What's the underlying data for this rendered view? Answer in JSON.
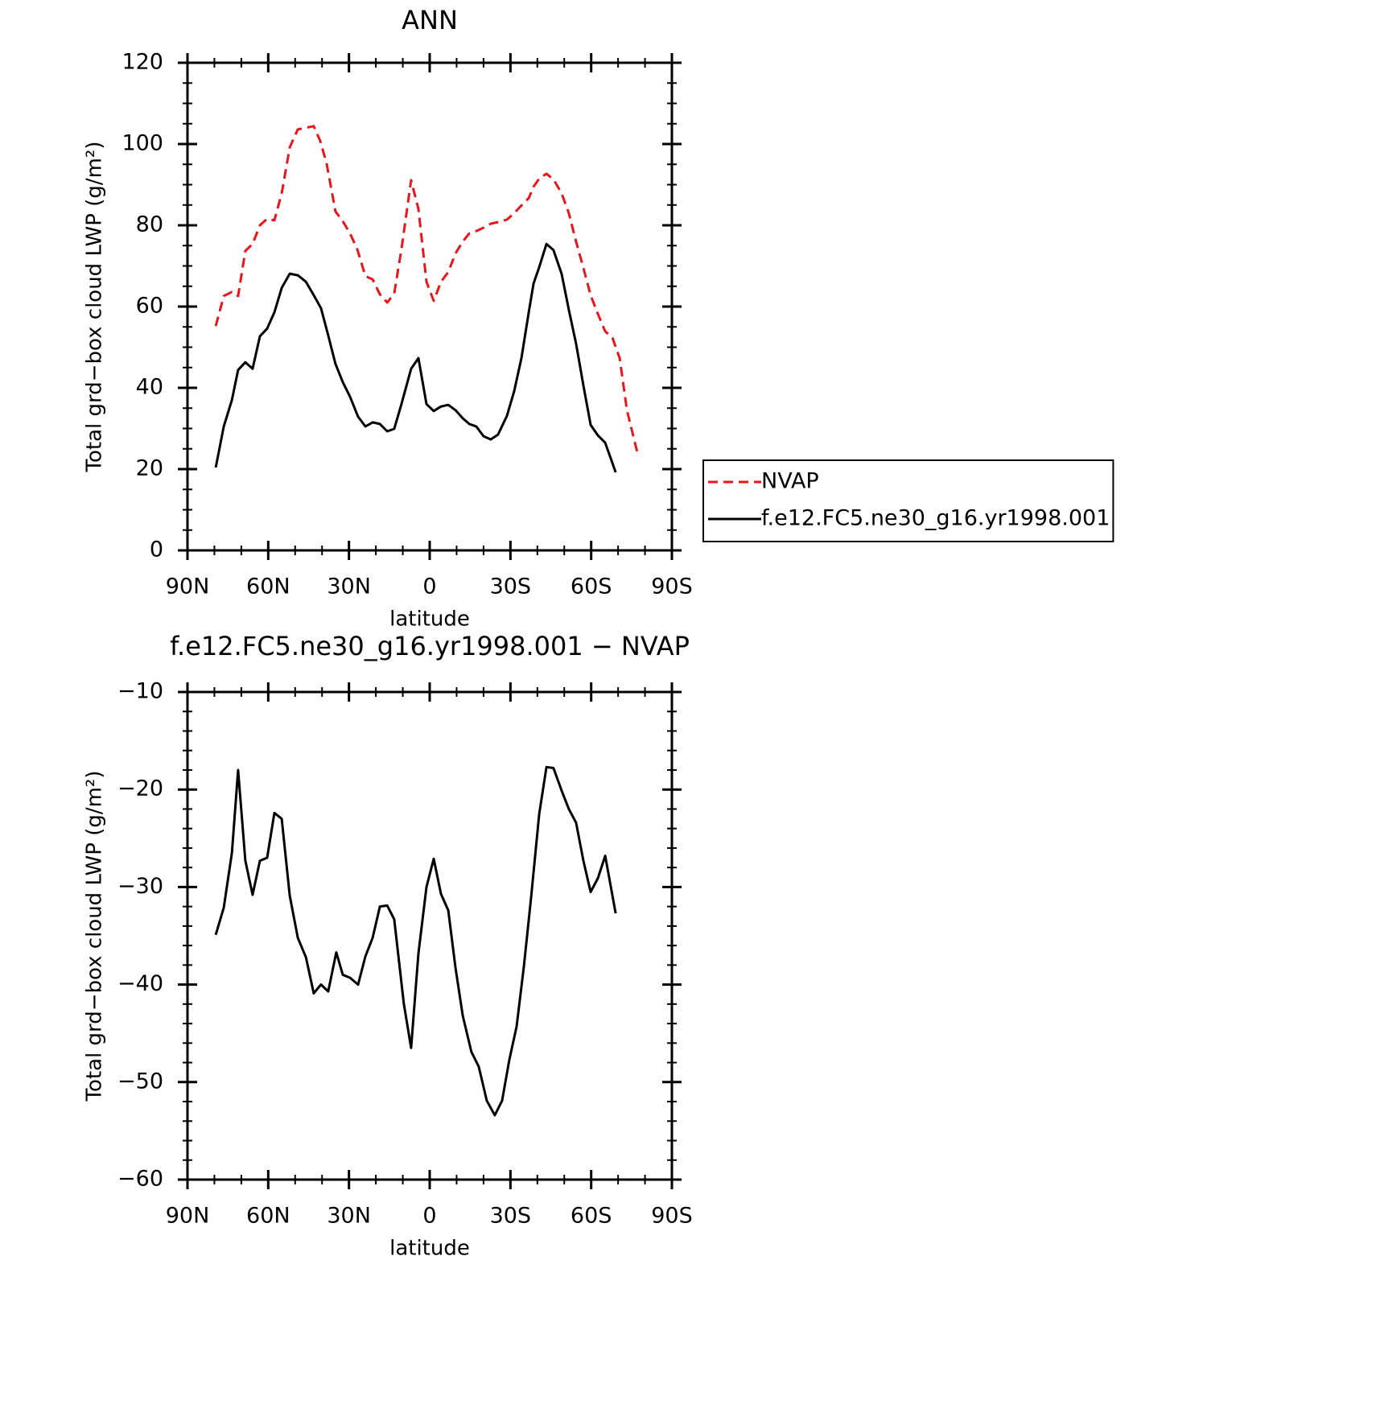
{
  "chart_data": [
    {
      "type": "line",
      "title": "ANN",
      "xlabel": "latitude",
      "ylabel": "Total grd−box cloud LWP (g/m²)",
      "xlim": [
        90,
        -90
      ],
      "xticks": [
        {
          "value": 90,
          "label": "90N"
        },
        {
          "value": 60,
          "label": "60N"
        },
        {
          "value": 30,
          "label": "30N"
        },
        0,
        {
          "value": -30,
          "label": "30S"
        },
        {
          "value": -60,
          "label": "60S"
        },
        {
          "value": -90,
          "label": "90S"
        }
      ],
      "xminorticks": [
        80,
        70,
        50,
        40,
        20,
        10,
        -10,
        -20,
        -40,
        -50,
        -70,
        -80
      ],
      "ylim": [
        0,
        120
      ],
      "yticks": [
        0,
        20,
        40,
        60,
        80,
        100,
        120
      ],
      "yminorticks": [
        5,
        10,
        15,
        25,
        30,
        35,
        45,
        50,
        55,
        65,
        70,
        75,
        85,
        90,
        95,
        105,
        110,
        115
      ],
      "legend": "right",
      "series": [
        {
          "name": "NVAP",
          "color": "#e8161b",
          "linestyle": "dashed",
          "x": [
            79.5,
            76.5,
            73.5,
            71.2,
            68.5,
            65.8,
            63.1,
            60.4,
            57.7,
            55.0,
            52.0,
            49.0,
            46.0,
            43.1,
            40.7,
            38.3,
            35.0,
            32.3,
            29.6,
            26.9,
            23.9,
            21.2,
            18.5,
            15.8,
            13.2,
            10.5,
            6.9,
            4.2,
            1.2,
            -1.5,
            -4.2,
            -6.9,
            -9.6,
            -12.3,
            -14.7,
            -17.3,
            -20.0,
            -22.7,
            -25.4,
            -28.7,
            -31.4,
            -34.1,
            -36.8,
            -38.6,
            -40.7,
            -43.4,
            -46.0,
            -49.0,
            -51.7,
            -54.4,
            -57.1,
            -59.8,
            -62.5,
            -65.2,
            -67.9,
            -70.6,
            -73.3,
            -77.1
          ],
          "values": [
            55.2,
            62.6,
            63.6,
            62.6,
            73.7,
            75.4,
            80.0,
            81.6,
            81.2,
            87.9,
            99.2,
            103.6,
            104.0,
            104.4,
            100.8,
            95.2,
            83.4,
            81.0,
            78.0,
            74.1,
            67.5,
            66.7,
            63.0,
            61.0,
            63.2,
            74.1,
            91.1,
            84.0,
            66.1,
            61.4,
            66.1,
            68.5,
            73.1,
            76.0,
            78.0,
            78.6,
            79.4,
            80.4,
            80.8,
            81.4,
            83.0,
            84.9,
            86.7,
            89.5,
            91.5,
            92.7,
            91.3,
            87.9,
            83.0,
            76.0,
            69.5,
            62.8,
            58.2,
            53.9,
            52.3,
            47.3,
            34.5,
            24.2
          ]
        },
        {
          "name": "f.e12.FC5.ne30_g16.yr1998.001",
          "color": "#000000",
          "linestyle": "solid",
          "x": [
            79.5,
            76.5,
            73.5,
            71.2,
            68.5,
            65.8,
            63.1,
            60.4,
            57.7,
            55.0,
            52.0,
            49.0,
            46.0,
            43.1,
            40.4,
            37.7,
            35.0,
            32.3,
            29.6,
            26.6,
            23.9,
            21.2,
            18.5,
            15.8,
            13.2,
            10.5,
            6.9,
            4.2,
            1.2,
            -1.5,
            -4.2,
            -6.9,
            -9.6,
            -12.3,
            -14.7,
            -17.3,
            -20.0,
            -22.7,
            -25.4,
            -28.7,
            -31.4,
            -34.1,
            -36.8,
            -38.6,
            -40.7,
            -43.4,
            -46.0,
            -49.0,
            -51.7,
            -54.4,
            -57.1,
            -59.8,
            -62.5,
            -65.2,
            -69.1
          ],
          "values": [
            20.4,
            30.5,
            37.0,
            44.4,
            46.3,
            44.7,
            52.7,
            54.6,
            58.6,
            64.6,
            68.1,
            67.7,
            66.1,
            62.8,
            59.6,
            52.9,
            45.9,
            41.4,
            37.8,
            32.9,
            30.5,
            31.5,
            31.1,
            29.3,
            29.9,
            36.0,
            44.7,
            47.3,
            36.0,
            34.3,
            35.4,
            35.8,
            34.5,
            32.5,
            31.1,
            30.5,
            28.1,
            27.3,
            28.5,
            33.1,
            39.2,
            47.3,
            58.6,
            65.7,
            69.7,
            75.4,
            73.9,
            68.1,
            59.2,
            50.9,
            40.6,
            30.9,
            28.3,
            26.5,
            19.2
          ]
        }
      ]
    },
    {
      "type": "line",
      "title": "f.e12.FC5.ne30_g16.yr1998.001 − NVAP",
      "xlabel": "latitude",
      "ylabel": "Total grd−box cloud LWP (g/m²)",
      "xlim": [
        90,
        -90
      ],
      "xticks": [
        {
          "value": 90,
          "label": "90N"
        },
        {
          "value": 60,
          "label": "60N"
        },
        {
          "value": 30,
          "label": "30N"
        },
        0,
        {
          "value": -30,
          "label": "30S"
        },
        {
          "value": -60,
          "label": "60S"
        },
        {
          "value": -90,
          "label": "90S"
        }
      ],
      "xminorticks": [
        80,
        70,
        50,
        40,
        20,
        10,
        -10,
        -20,
        -40,
        -50,
        -70,
        -80
      ],
      "ylim": [
        -60,
        -10
      ],
      "yticks": [
        {
          "value": -60,
          "label": "−60"
        },
        {
          "value": -50,
          "label": "−50"
        },
        {
          "value": -40,
          "label": "−40"
        },
        {
          "value": -30,
          "label": "−30"
        },
        {
          "value": -20,
          "label": "−20"
        },
        {
          "value": -10,
          "label": "−10"
        }
      ],
      "yminorticks": [
        -12,
        -14,
        -16,
        -18,
        -22,
        -24,
        -26,
        -28,
        -32,
        -34,
        -36,
        -38,
        -42,
        -44,
        -46,
        -48,
        -52,
        -54,
        -56,
        -58
      ],
      "x": [
        79.5,
        76.5,
        73.5,
        71.2,
        68.5,
        65.8,
        63.1,
        60.4,
        57.7,
        55.0,
        52.0,
        49.0,
        46.0,
        43.1,
        40.4,
        37.7,
        34.7,
        32.3,
        29.6,
        26.6,
        23.9,
        21.2,
        18.5,
        15.8,
        13.2,
        9.6,
        6.9,
        4.2,
        1.2,
        -1.5,
        -4.2,
        -6.9,
        -9.6,
        -12.3,
        -15.5,
        -18.2,
        -21.2,
        -24.2,
        -26.9,
        -29.6,
        -32.3,
        -35.0,
        -37.7,
        -40.7,
        -43.4,
        -46.0,
        -49.0,
        -51.7,
        -54.4,
        -57.1,
        -59.8,
        -62.5,
        -65.2,
        -69.1
      ],
      "series": [
        {
          "color": "#000000",
          "linestyle": "solid",
          "values": [
            -34.9,
            -32.1,
            -26.5,
            -18.0,
            -27.3,
            -30.8,
            -27.3,
            -27.0,
            -22.4,
            -23.0,
            -30.9,
            -35.2,
            -37.2,
            -40.9,
            -40.0,
            -40.7,
            -36.7,
            -39.0,
            -39.3,
            -40.0,
            -37.1,
            -35.2,
            -32.0,
            -31.9,
            -33.3,
            -42.0,
            -46.5,
            -36.8,
            -30.0,
            -27.1,
            -30.7,
            -32.4,
            -38.3,
            -43.2,
            -46.9,
            -48.4,
            -51.9,
            -53.4,
            -51.9,
            -47.7,
            -44.3,
            -38.1,
            -31.0,
            -22.5,
            -17.7,
            -17.8,
            -20.1,
            -22.0,
            -23.4,
            -27.3,
            -30.5,
            -29.1,
            -26.8,
            -32.7
          ]
        }
      ]
    }
  ]
}
